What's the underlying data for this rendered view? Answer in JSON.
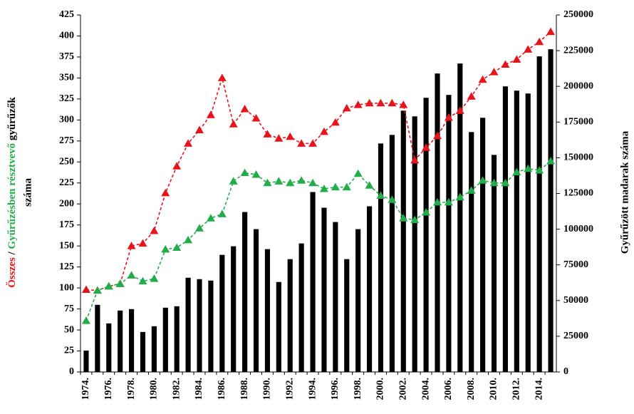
{
  "chart_data": {
    "type": "bar",
    "y_label": {
      "total": "Összes",
      "sep": "/",
      "participating": "Gyűrűzésben résztvevő",
      "ringers": "gyűrűzők",
      "count": "száma"
    },
    "y2_label": "Gyűrűzött madarak száma",
    "categories": [
      "1974.",
      null,
      "1976.",
      null,
      "1978.",
      null,
      "1980.",
      null,
      "1982.",
      null,
      "1984.",
      null,
      "1986.",
      null,
      "1988.",
      null,
      "1990.",
      null,
      "1992.",
      null,
      "1994.",
      null,
      "1996.",
      null,
      "1998.",
      null,
      "2000.",
      null,
      "2002.",
      null,
      "2004.",
      null,
      "2006.",
      null,
      "2008.",
      null,
      "2010.",
      null,
      "2012.",
      null,
      "2014.",
      null
    ],
    "ylim": [
      0,
      425
    ],
    "yticks": [
      0,
      25,
      50,
      75,
      100,
      125,
      150,
      175,
      200,
      225,
      250,
      275,
      300,
      325,
      350,
      375,
      400,
      425
    ],
    "y2lim": [
      0,
      250000
    ],
    "y2ticks": [
      0,
      25000,
      50000,
      75000,
      100000,
      125000,
      150000,
      175000,
      200000,
      225000,
      250000
    ],
    "grid": false,
    "series": [
      {
        "type": "bar",
        "axis": "y2",
        "color": "#000000",
        "values": [
          15000,
          47000,
          34000,
          43000,
          44000,
          28000,
          32000,
          45000,
          46000,
          66000,
          65000,
          64000,
          82000,
          88000,
          112000,
          100000,
          86000,
          63000,
          79000,
          90000,
          126000,
          115000,
          105000,
          79000,
          100000,
          116000,
          160000,
          166000,
          183000,
          179000,
          192000,
          209000,
          194000,
          216000,
          168000,
          178000,
          152000,
          200000,
          197000,
          195000,
          221000,
          226000
        ]
      },
      {
        "type": "line",
        "color": "#e8141b",
        "values": [
          98,
          97,
          102,
          105,
          150,
          153,
          168,
          213,
          245,
          272,
          288,
          306,
          350,
          295,
          313,
          302,
          283,
          278,
          280,
          272,
          272,
          286,
          297,
          314,
          318,
          320,
          320,
          320,
          318,
          252,
          267,
          281,
          303,
          311,
          328,
          348,
          357,
          366,
          372,
          384,
          393,
          405
        ]
      },
      {
        "type": "line",
        "color": "#22ad4a",
        "values": [
          61,
          97,
          102,
          105,
          115,
          108,
          111,
          146,
          148,
          157,
          171,
          183,
          188,
          227,
          237,
          235,
          225,
          227,
          225,
          228,
          225,
          218,
          220,
          220,
          236,
          222,
          210,
          205,
          183,
          181,
          190,
          202,
          202,
          208,
          216,
          228,
          225,
          225,
          238,
          242,
          240,
          251
        ]
      }
    ]
  }
}
